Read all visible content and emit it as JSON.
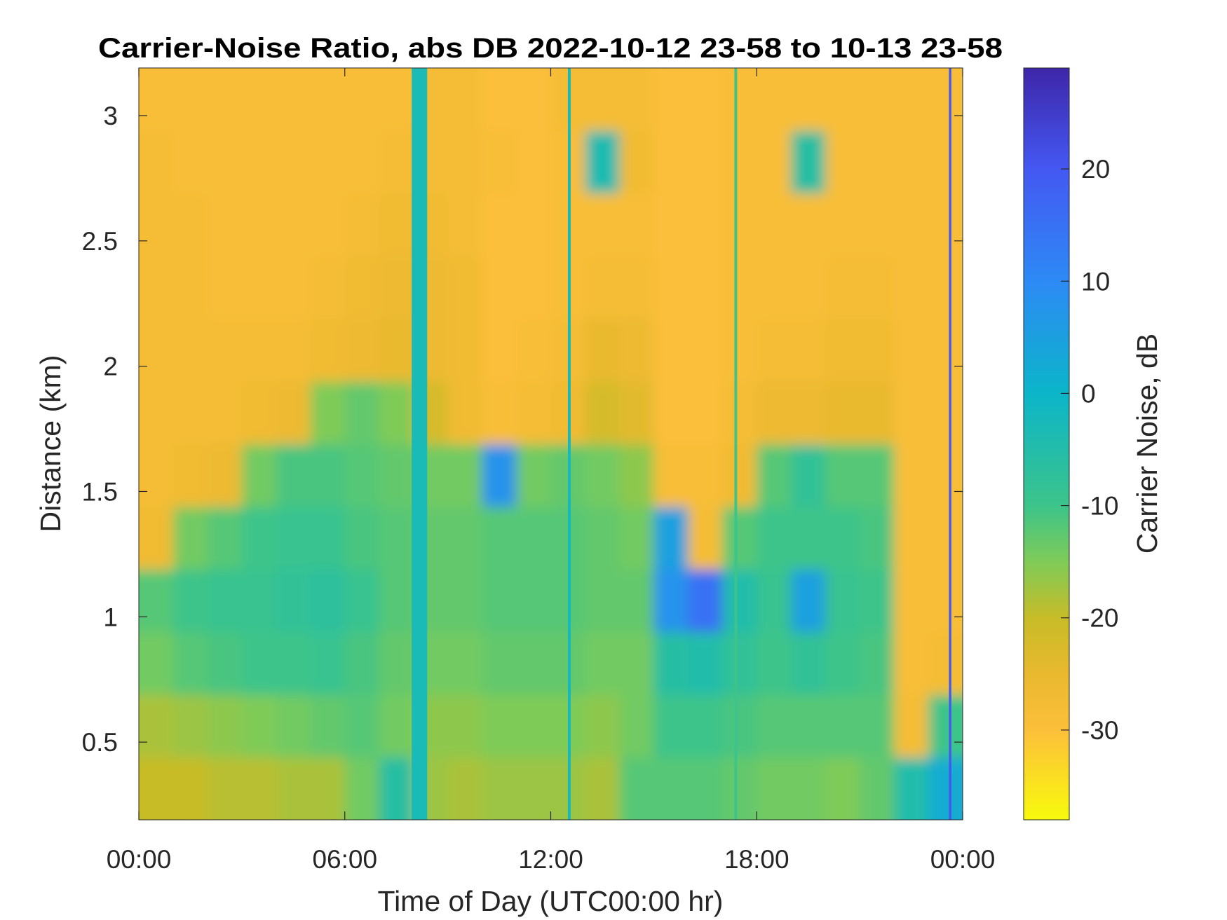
{
  "chart_data": {
    "type": "heatmap",
    "title": "Carrier-Noise Ratio, abs DB 2022-10-12 23-58 to 10-13 23-58",
    "xlabel": "Time of Day (UTC00:00 hr)",
    "ylabel": "Distance (km)",
    "colorbar_label": "Carrier Noise, dB",
    "xlim": [
      0,
      24
    ],
    "ylim": [
      0.19,
      3.19
    ],
    "clim": [
      -38,
      29
    ],
    "x_ticks": [
      0,
      6,
      12,
      18,
      24
    ],
    "x_tick_labels": [
      "00:00",
      "06:00",
      "12:00",
      "18:00",
      "00:00"
    ],
    "y_ticks": [
      0.5,
      1,
      1.5,
      2,
      2.5,
      3
    ],
    "y_tick_labels": [
      "0.5",
      "1",
      "1.5",
      "2",
      "2.5",
      "3"
    ],
    "colorbar_ticks": [
      20,
      10,
      0,
      -10,
      -20,
      -30
    ],
    "colorbar_tick_labels": [
      "20",
      "10",
      "0",
      "-10",
      "-20",
      "-30"
    ],
    "colormap": [
      {
        "v": -38,
        "c": "#f8fa0d"
      },
      {
        "v": -30,
        "c": "#fcbf3a"
      },
      {
        "v": -25,
        "c": "#e9b92e"
      },
      {
        "v": -20,
        "c": "#c7bc28"
      },
      {
        "v": -15,
        "c": "#7fcb58"
      },
      {
        "v": -10,
        "c": "#3cc48a"
      },
      {
        "v": 0,
        "c": "#0bb5c9"
      },
      {
        "v": 10,
        "c": "#2d8af5"
      },
      {
        "v": 20,
        "c": "#4458f2"
      },
      {
        "v": 29,
        "c": "#3e26a8"
      }
    ],
    "x_hours": [
      0.5,
      1.5,
      2.5,
      3.5,
      4.5,
      5.5,
      6.5,
      7.5,
      8.5,
      9.5,
      10.5,
      11.5,
      12.5,
      13.5,
      14.5,
      15.5,
      16.5,
      17.5,
      18.5,
      19.5,
      20.5,
      21.5,
      22.5,
      23.5
    ],
    "y_km": [
      0.315,
      0.565,
      0.815,
      1.065,
      1.315,
      1.565,
      1.815,
      2.065,
      2.315,
      2.565,
      2.815,
      3.065
    ],
    "values": [
      [
        -20,
        -18,
        -14,
        -12,
        -27,
        -28,
        -28,
        -28,
        -28,
        -28,
        -28,
        -29
      ],
      [
        -20,
        -17,
        -12,
        -10,
        -14,
        -27,
        -28,
        -28,
        -28,
        -28,
        -29,
        -29
      ],
      [
        -19,
        -16,
        -11,
        -9,
        -12,
        -26,
        -28,
        -28,
        -29,
        -29,
        -29,
        -29
      ],
      [
        -19,
        -15,
        -10,
        -9,
        -10,
        -14,
        -27,
        -28,
        -29,
        -29,
        -29,
        -29
      ],
      [
        -18,
        -14,
        -10,
        -8,
        -9,
        -11,
        -26,
        -28,
        -29,
        -29,
        -29,
        -29
      ],
      [
        -18,
        -13,
        -9,
        -7,
        -9,
        -11,
        -15,
        -27,
        -28,
        -29,
        -29,
        -29
      ],
      [
        -14,
        -12,
        -11,
        -9,
        -11,
        -12,
        -13,
        -26,
        -27,
        -28,
        -29,
        -29
      ],
      [
        -6,
        -14,
        -13,
        -12,
        -12,
        -13,
        -15,
        -25,
        -26,
        -27,
        -28,
        -29
      ],
      [
        -17,
        -16,
        -14,
        -13,
        -13,
        -14,
        -22,
        -26,
        -26,
        -27,
        -28,
        -28
      ],
      [
        -18,
        -16,
        -14,
        -13,
        -13,
        -14,
        -27,
        -27,
        -27,
        -28,
        -28,
        -28
      ],
      [
        -17,
        -15,
        -13,
        -12,
        -12,
        8,
        -29,
        -30,
        -30,
        -30,
        -29,
        -30
      ],
      [
        -17,
        -15,
        -13,
        -12,
        -12,
        -14,
        -28,
        -29,
        -30,
        -30,
        -30,
        -30
      ],
      [
        -17,
        -15,
        -13,
        -12,
        -12,
        -13,
        -27,
        -28,
        -29,
        -29,
        -29,
        -28
      ],
      [
        -18,
        -16,
        -14,
        -13,
        -13,
        -14,
        -22,
        -25,
        -28,
        -29,
        -4,
        -28
      ],
      [
        -12,
        -14,
        -14,
        -13,
        -14,
        -16,
        -24,
        -26,
        -28,
        -29,
        -27,
        -28
      ],
      [
        -12,
        -10,
        -6,
        8,
        5,
        -29,
        -30,
        -30,
        -30,
        -30,
        -30,
        -30
      ],
      [
        -12,
        -10,
        -5,
        15,
        -28,
        -29,
        -30,
        -30,
        -30,
        -30,
        -30,
        -30
      ],
      [
        -13,
        -11,
        -8,
        -5,
        -12,
        -27,
        -28,
        -29,
        -29,
        -29,
        -29,
        -29
      ],
      [
        -14,
        -12,
        -10,
        -9,
        -10,
        -12,
        -26,
        -28,
        -29,
        -29,
        -29,
        -29
      ],
      [
        -14,
        -12,
        -8,
        5,
        -10,
        -8,
        -26,
        -28,
        -29,
        -29,
        -6,
        -29
      ],
      [
        -15,
        -12,
        -10,
        -9,
        -10,
        -12,
        -25,
        -27,
        -28,
        -29,
        -29,
        -29
      ],
      [
        -13,
        -12,
        -11,
        -10,
        -11,
        -12,
        -25,
        -27,
        -28,
        -29,
        -29,
        -29
      ],
      [
        -5,
        -28,
        -29,
        -29,
        -29,
        -29,
        -29,
        -29,
        -29,
        -29,
        -29,
        -29
      ],
      [
        2,
        -10,
        -28,
        -29,
        -29,
        -29,
        -29,
        -29,
        -29,
        -29,
        -29,
        -29
      ]
    ],
    "stripes": [
      {
        "time_h": 7.95,
        "width_h": 0.45,
        "value": -3
      },
      {
        "time_h": 12.5,
        "width_h": 0.08,
        "value": -2
      },
      {
        "time_h": 17.35,
        "width_h": 0.08,
        "value": -10
      },
      {
        "time_h": 23.6,
        "width_h": 0.07,
        "value": 20
      }
    ]
  }
}
